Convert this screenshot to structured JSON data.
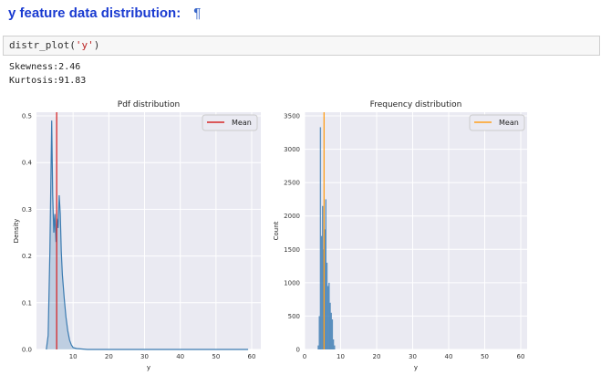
{
  "heading": {
    "text": "y feature data distribution:",
    "pilcrow": "¶"
  },
  "cell": {
    "code_prefix": "distr_plot(",
    "code_arg": "'y'",
    "code_suffix": ")"
  },
  "output": {
    "skewness": "Skewness:2.46",
    "kurtosis": "Kurtosis:91.83"
  },
  "colors": {
    "heading": "#1a3bd1",
    "plot_bg": "#eaeaf2",
    "series": "#3b7bb1",
    "pdf_mean": "#d62728",
    "freq_mean": "#ff9f1c"
  },
  "chart_data": [
    {
      "type": "area",
      "title": "Pdf distribution",
      "xlabel": "y",
      "ylabel": "Density",
      "xlim": [
        0,
        60
      ],
      "ylim": [
        0,
        0.5
      ],
      "x_ticks": [
        "10",
        "20",
        "30",
        "40",
        "50",
        "60"
      ],
      "y_ticks": [
        "0.0",
        "0.1",
        "0.2",
        "0.3",
        "0.4",
        "0.5"
      ],
      "legend": {
        "label": "Mean",
        "position": "top-right"
      },
      "mean": 5.4,
      "series": [
        {
          "x": [
            2.5,
            3.0,
            3.5,
            4.0,
            4.3,
            4.6,
            4.9,
            5.2,
            5.5,
            5.8,
            6.1,
            6.4,
            6.7,
            7.0,
            7.5,
            8.0,
            8.5,
            9.0,
            9.5,
            10.0,
            11.0,
            14.0,
            20.0,
            30.0,
            40.0,
            50.0,
            59.0
          ],
          "y": [
            0.0,
            0.03,
            0.21,
            0.49,
            0.33,
            0.25,
            0.29,
            0.23,
            0.28,
            0.26,
            0.33,
            0.29,
            0.21,
            0.16,
            0.11,
            0.07,
            0.04,
            0.02,
            0.01,
            0.004,
            0.002,
            0.0,
            0.0,
            0.0,
            0.0,
            0.0,
            0.0
          ]
        }
      ]
    },
    {
      "type": "bar",
      "title": "Frequency distribution",
      "xlabel": "y",
      "ylabel": "Count",
      "xlim": [
        0,
        60
      ],
      "ylim": [
        0,
        3500
      ],
      "x_ticks": [
        "0",
        "10",
        "20",
        "30",
        "40",
        "50",
        "60"
      ],
      "y_ticks": [
        "0",
        "500",
        "1000",
        "1500",
        "2000",
        "2500",
        "3000",
        "3500"
      ],
      "legend": {
        "label": "Mean",
        "position": "top-right"
      },
      "mean": 5.4,
      "bins": [
        {
          "x": 3.8,
          "count": 60
        },
        {
          "x": 4.1,
          "count": 500
        },
        {
          "x": 4.4,
          "count": 3330
        },
        {
          "x": 4.7,
          "count": 1700
        },
        {
          "x": 5.0,
          "count": 2150
        },
        {
          "x": 5.3,
          "count": 1500
        },
        {
          "x": 5.6,
          "count": 1800
        },
        {
          "x": 5.9,
          "count": 2250
        },
        {
          "x": 6.2,
          "count": 1300
        },
        {
          "x": 6.5,
          "count": 950
        },
        {
          "x": 6.8,
          "count": 1000
        },
        {
          "x": 7.1,
          "count": 700
        },
        {
          "x": 7.4,
          "count": 550
        },
        {
          "x": 7.7,
          "count": 450
        },
        {
          "x": 8.0,
          "count": 150
        },
        {
          "x": 8.3,
          "count": 60
        }
      ]
    }
  ]
}
